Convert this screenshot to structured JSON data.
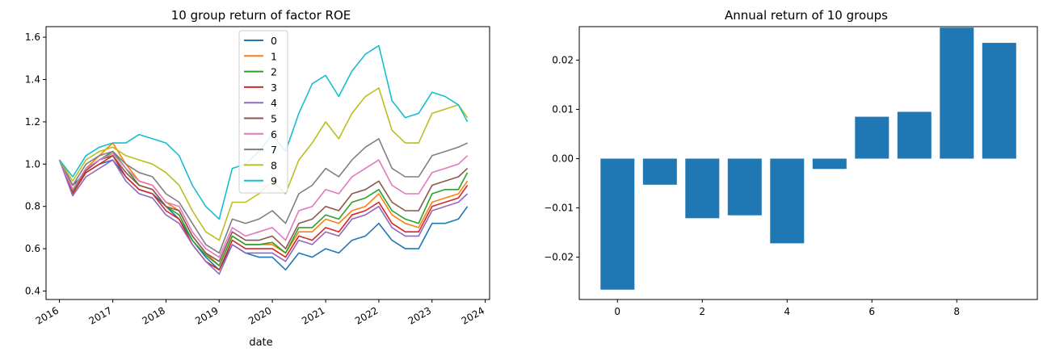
{
  "chart_data": [
    {
      "type": "line",
      "title": "10 group return of factor ROE",
      "xlabel": "date",
      "ylabel": "",
      "xlim": [
        "2015-10-01",
        "2024-01-31"
      ],
      "ylim": [
        0.36,
        1.65
      ],
      "x_ticks": [
        "2016",
        "2017",
        "2018",
        "2019",
        "2020",
        "2021",
        "2022",
        "2023",
        "2024"
      ],
      "y_ticks": [
        "0.4",
        "0.6",
        "0.8",
        "1.0",
        "1.2",
        "1.4",
        "1.6"
      ],
      "legend_position": "top-center",
      "x": [
        "2016-01-01",
        "2016-04-01",
        "2016-07-01",
        "2016-10-01",
        "2017-01-01",
        "2017-04-01",
        "2017-07-01",
        "2017-10-01",
        "2018-01-01",
        "2018-04-01",
        "2018-07-01",
        "2018-10-01",
        "2019-01-01",
        "2019-04-01",
        "2019-07-01",
        "2019-10-01",
        "2020-01-01",
        "2020-04-01",
        "2020-07-01",
        "2020-10-01",
        "2021-01-01",
        "2021-04-01",
        "2021-07-01",
        "2021-10-01",
        "2022-01-01",
        "2022-04-01",
        "2022-07-01",
        "2022-10-01",
        "2023-01-01",
        "2023-04-01",
        "2023-07-01",
        "2023-09-01"
      ],
      "series": [
        {
          "name": "0",
          "color": "#1f77b4",
          "values": [
            1.02,
            0.9,
            0.96,
            1.0,
            1.02,
            0.94,
            0.88,
            0.86,
            0.8,
            0.74,
            0.64,
            0.56,
            0.5,
            0.62,
            0.58,
            0.56,
            0.56,
            0.5,
            0.58,
            0.56,
            0.6,
            0.58,
            0.64,
            0.66,
            0.72,
            0.64,
            0.6,
            0.6,
            0.72,
            0.72,
            0.74,
            0.8
          ]
        },
        {
          "name": "1",
          "color": "#ff7f0e",
          "values": [
            1.02,
            0.88,
            0.98,
            1.04,
            1.1,
            1.0,
            0.92,
            0.9,
            0.82,
            0.78,
            0.66,
            0.58,
            0.52,
            0.66,
            0.62,
            0.62,
            0.62,
            0.58,
            0.68,
            0.68,
            0.74,
            0.72,
            0.78,
            0.8,
            0.86,
            0.76,
            0.72,
            0.7,
            0.82,
            0.84,
            0.86,
            0.92
          ]
        },
        {
          "name": "2",
          "color": "#2ca02c",
          "values": [
            1.02,
            0.87,
            0.97,
            1.02,
            1.06,
            0.98,
            0.9,
            0.88,
            0.8,
            0.76,
            0.64,
            0.57,
            0.52,
            0.66,
            0.62,
            0.62,
            0.63,
            0.58,
            0.7,
            0.7,
            0.76,
            0.74,
            0.82,
            0.84,
            0.88,
            0.78,
            0.74,
            0.72,
            0.86,
            0.88,
            0.88,
            0.96
          ]
        },
        {
          "name": "3",
          "color": "#d62728",
          "values": [
            1.02,
            0.86,
            0.96,
            1.0,
            1.04,
            0.94,
            0.88,
            0.86,
            0.78,
            0.74,
            0.62,
            0.54,
            0.5,
            0.64,
            0.6,
            0.6,
            0.6,
            0.56,
            0.66,
            0.64,
            0.7,
            0.68,
            0.76,
            0.78,
            0.82,
            0.72,
            0.68,
            0.68,
            0.8,
            0.82,
            0.84,
            0.9
          ]
        },
        {
          "name": "4",
          "color": "#9467bd",
          "values": [
            1.02,
            0.85,
            0.94,
            0.98,
            1.02,
            0.92,
            0.86,
            0.84,
            0.76,
            0.72,
            0.62,
            0.54,
            0.48,
            0.62,
            0.58,
            0.58,
            0.58,
            0.54,
            0.64,
            0.62,
            0.68,
            0.66,
            0.74,
            0.76,
            0.8,
            0.7,
            0.66,
            0.66,
            0.78,
            0.8,
            0.82,
            0.86
          ]
        },
        {
          "name": "5",
          "color": "#8c564b",
          "values": [
            1.02,
            0.88,
            0.97,
            1.02,
            1.04,
            0.96,
            0.9,
            0.88,
            0.8,
            0.78,
            0.66,
            0.58,
            0.54,
            0.68,
            0.64,
            0.64,
            0.66,
            0.6,
            0.72,
            0.74,
            0.8,
            0.78,
            0.86,
            0.88,
            0.92,
            0.82,
            0.78,
            0.78,
            0.9,
            0.92,
            0.94,
            0.98
          ]
        },
        {
          "name": "6",
          "color": "#e377c2",
          "values": [
            1.02,
            0.88,
            0.98,
            1.02,
            1.05,
            0.98,
            0.92,
            0.9,
            0.82,
            0.8,
            0.68,
            0.6,
            0.56,
            0.7,
            0.66,
            0.68,
            0.7,
            0.64,
            0.78,
            0.8,
            0.88,
            0.86,
            0.94,
            0.98,
            1.02,
            0.9,
            0.86,
            0.86,
            0.96,
            0.98,
            1.0,
            1.04
          ]
        },
        {
          "name": "7",
          "color": "#7f7f7f",
          "values": [
            1.02,
            0.9,
            1.0,
            1.04,
            1.06,
            1.0,
            0.96,
            0.94,
            0.86,
            0.82,
            0.72,
            0.62,
            0.58,
            0.74,
            0.72,
            0.74,
            0.78,
            0.72,
            0.86,
            0.9,
            0.98,
            0.94,
            1.02,
            1.08,
            1.12,
            0.98,
            0.94,
            0.94,
            1.04,
            1.06,
            1.08,
            1.1
          ]
        },
        {
          "name": "8",
          "color": "#bcbd22",
          "values": [
            1.02,
            0.92,
            1.02,
            1.06,
            1.08,
            1.04,
            1.02,
            1.0,
            0.96,
            0.9,
            0.78,
            0.68,
            0.64,
            0.82,
            0.82,
            0.86,
            0.92,
            0.86,
            1.02,
            1.1,
            1.2,
            1.12,
            1.24,
            1.32,
            1.36,
            1.16,
            1.1,
            1.1,
            1.24,
            1.26,
            1.28,
            1.22
          ]
        },
        {
          "name": "9",
          "color": "#17becf",
          "values": [
            1.02,
            0.94,
            1.04,
            1.08,
            1.1,
            1.1,
            1.14,
            1.12,
            1.1,
            1.04,
            0.9,
            0.8,
            0.74,
            0.98,
            1.0,
            1.06,
            1.14,
            1.06,
            1.24,
            1.38,
            1.42,
            1.32,
            1.44,
            1.52,
            1.56,
            1.3,
            1.22,
            1.24,
            1.34,
            1.32,
            1.28,
            1.2
          ]
        }
      ]
    },
    {
      "type": "bar",
      "title": "Annual return of 10 groups",
      "xlabel": "",
      "ylabel": "",
      "categories": [
        0,
        1,
        2,
        3,
        4,
        5,
        6,
        7,
        8,
        9
      ],
      "values": [
        -0.0266,
        -0.0053,
        -0.0121,
        -0.0115,
        -0.0172,
        -0.0021,
        0.0085,
        0.0095,
        0.0266,
        0.0235
      ],
      "color": "#1f77b4",
      "xlim": [
        -0.9,
        9.9
      ],
      "ylim": [
        -0.0286,
        0.0268
      ],
      "x_ticks": [
        "0",
        "2",
        "4",
        "6",
        "8"
      ],
      "x_tick_values": [
        0,
        2,
        4,
        6,
        8
      ],
      "y_ticks": [
        "−0.02",
        "−0.01",
        "0.00",
        "0.01",
        "0.02"
      ],
      "y_tick_values": [
        -0.02,
        -0.01,
        0,
        0.01,
        0.02
      ]
    }
  ]
}
